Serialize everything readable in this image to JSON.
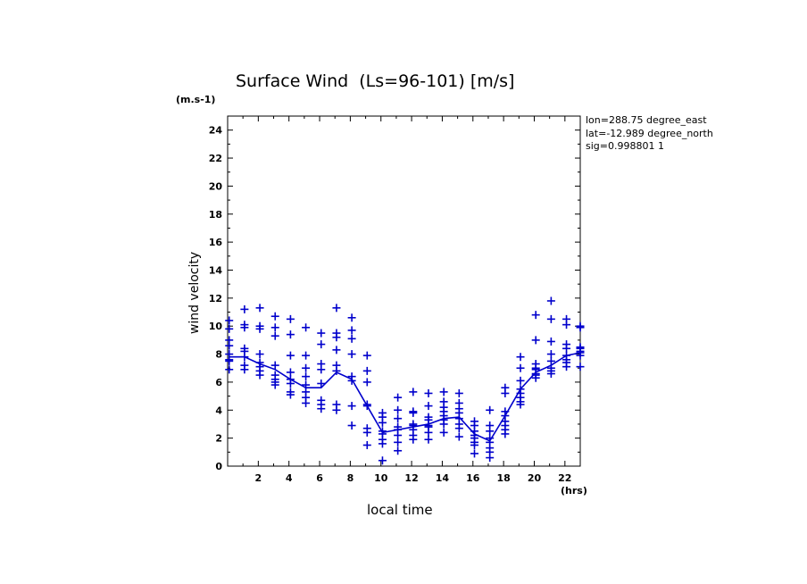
{
  "chart_data": {
    "type": "scatter",
    "title": "Surface Wind  (Ls=96-101) [m/s]",
    "xlabel": "local time",
    "ylabel": "wind velocity",
    "x_unit": "(hrs)",
    "y_unit": "(m.s-1)",
    "xlim": [
      0,
      23
    ],
    "ylim": [
      0,
      25
    ],
    "xticks": [
      2,
      4,
      6,
      8,
      10,
      12,
      14,
      16,
      18,
      20,
      22
    ],
    "yticks": [
      0,
      2,
      4,
      6,
      8,
      10,
      12,
      14,
      16,
      18,
      20,
      22,
      24
    ],
    "info": [
      "lon=288.75 degree_east",
      "lat=-12.989 degree_north",
      "sig=0.998801 1"
    ],
    "series": [
      {
        "type": "scatter",
        "marker": "+",
        "color": "#0000cc",
        "x": [
          0.1,
          0.1,
          0.1,
          0.1,
          0.1,
          0.1,
          0.1,
          0.1,
          1.1,
          1.1,
          1.1,
          1.1,
          1.1,
          1.1,
          1.1,
          1.1,
          2.1,
          2.1,
          2.1,
          2.1,
          2.1,
          2.1,
          2.1,
          2.1,
          3.1,
          3.1,
          3.1,
          3.1,
          3.1,
          3.1,
          3.1,
          3.1,
          4.1,
          4.1,
          4.1,
          4.1,
          4.1,
          4.1,
          4.1,
          4.1,
          5.1,
          5.1,
          5.1,
          5.1,
          5.1,
          5.1,
          5.1,
          5.1,
          6.1,
          6.1,
          6.1,
          6.1,
          6.1,
          6.1,
          6.1,
          6.1,
          7.1,
          7.1,
          7.1,
          7.1,
          7.1,
          7.1,
          7.1,
          7.1,
          8.1,
          8.1,
          8.1,
          8.1,
          8.1,
          8.1,
          8.1,
          8.1,
          9.1,
          9.1,
          9.1,
          9.1,
          9.1,
          9.1,
          9.1,
          9.1,
          10.1,
          10.1,
          10.1,
          10.1,
          10.1,
          10.1,
          10.1,
          10.1,
          11.1,
          11.1,
          11.1,
          11.1,
          11.1,
          11.1,
          11.1,
          11.1,
          12.1,
          12.1,
          12.1,
          12.1,
          12.1,
          12.1,
          12.1,
          12.1,
          13.1,
          13.1,
          13.1,
          13.1,
          13.1,
          13.1,
          13.1,
          13.1,
          14.1,
          14.1,
          14.1,
          14.1,
          14.1,
          14.1,
          14.1,
          14.1,
          15.1,
          15.1,
          15.1,
          15.1,
          15.1,
          15.1,
          15.1,
          15.1,
          16.1,
          16.1,
          16.1,
          16.1,
          16.1,
          16.1,
          16.1,
          16.1,
          17.1,
          17.1,
          17.1,
          17.1,
          17.1,
          17.1,
          17.1,
          17.1,
          18.1,
          18.1,
          18.1,
          18.1,
          18.1,
          18.1,
          18.1,
          18.1,
          19.1,
          19.1,
          19.1,
          19.1,
          19.1,
          19.1,
          19.1,
          19.1,
          20.1,
          20.1,
          20.1,
          20.1,
          20.1,
          20.1,
          20.1,
          20.1,
          21.1,
          21.1,
          21.1,
          21.1,
          21.1,
          21.1,
          21.1,
          21.1,
          22.1,
          22.1,
          22.1,
          22.1,
          22.1,
          22.1,
          22.1,
          22.1,
          23.0,
          23.0,
          23.0,
          23.0,
          23.0,
          23.0,
          23.0,
          23.0
        ],
        "y": [
          10.4,
          9.8,
          9.0,
          8.6,
          8.0,
          7.6,
          7.5,
          6.9,
          11.2,
          10.1,
          9.9,
          8.4,
          8.2,
          7.8,
          7.2,
          6.9,
          11.3,
          10.0,
          9.8,
          8.0,
          7.4,
          7.1,
          6.8,
          6.5,
          10.7,
          9.9,
          9.3,
          7.2,
          6.5,
          6.2,
          6.0,
          5.8,
          10.5,
          9.4,
          7.9,
          6.7,
          6.2,
          5.9,
          5.3,
          5.1,
          9.9,
          7.9,
          7.0,
          6.4,
          5.8,
          5.3,
          4.9,
          4.5,
          9.5,
          8.7,
          7.3,
          6.9,
          5.9,
          4.7,
          4.4,
          4.1,
          11.3,
          9.5,
          9.2,
          8.3,
          7.2,
          6.8,
          4.4,
          4.0,
          10.6,
          9.7,
          9.1,
          8.0,
          6.4,
          6.1,
          4.3,
          2.9,
          7.9,
          6.8,
          6.0,
          4.4,
          4.3,
          2.7,
          2.4,
          1.5,
          3.8,
          3.5,
          3.1,
          2.5,
          2.3,
          1.9,
          1.6,
          0.4,
          4.9,
          4.0,
          3.4,
          2.8,
          2.6,
          2.2,
          1.7,
          1.1,
          5.3,
          3.9,
          3.8,
          3.0,
          2.9,
          2.6,
          2.2,
          1.9,
          5.2,
          4.3,
          3.5,
          3.3,
          2.9,
          2.8,
          2.4,
          1.9,
          5.3,
          4.6,
          4.2,
          3.9,
          3.6,
          3.3,
          3.0,
          2.4,
          5.2,
          4.5,
          4.1,
          3.8,
          3.4,
          3.0,
          2.7,
          2.1,
          3.2,
          2.9,
          2.5,
          2.2,
          2.0,
          1.7,
          1.5,
          0.9,
          4.0,
          2.9,
          2.5,
          2.0,
          1.7,
          1.3,
          1.0,
          0.6,
          5.6,
          5.2,
          3.9,
          3.6,
          3.2,
          2.9,
          2.6,
          2.3,
          7.8,
          7.0,
          6.1,
          5.5,
          5.2,
          4.9,
          4.6,
          4.4,
          10.8,
          9.0,
          7.3,
          7.0,
          6.9,
          6.6,
          6.5,
          6.3,
          11.8,
          10.5,
          8.9,
          8.0,
          7.5,
          7.0,
          6.8,
          6.6,
          10.5,
          10.1,
          8.7,
          8.4,
          7.9,
          7.6,
          7.4,
          7.1,
          10.0,
          9.9,
          8.5,
          8.4,
          8.2,
          8.1,
          7.9,
          7.1
        ]
      },
      {
        "type": "line",
        "color": "#0000cc",
        "x": [
          0.1,
          1.1,
          2.1,
          3.1,
          4.1,
          5.1,
          6.1,
          7.1,
          8.1,
          9.1,
          10.1,
          11.1,
          12.1,
          13.1,
          14.1,
          15.1,
          16.1,
          17.1,
          18.1,
          19.1,
          20.1,
          21.1,
          22.1,
          23.0
        ],
        "y": [
          7.8,
          7.8,
          7.3,
          6.9,
          6.2,
          5.6,
          5.6,
          6.7,
          6.2,
          4.3,
          2.4,
          2.6,
          2.8,
          3.0,
          3.4,
          3.5,
          2.3,
          1.8,
          3.6,
          5.5,
          6.7,
          7.2,
          7.9,
          8.1
        ]
      }
    ]
  }
}
